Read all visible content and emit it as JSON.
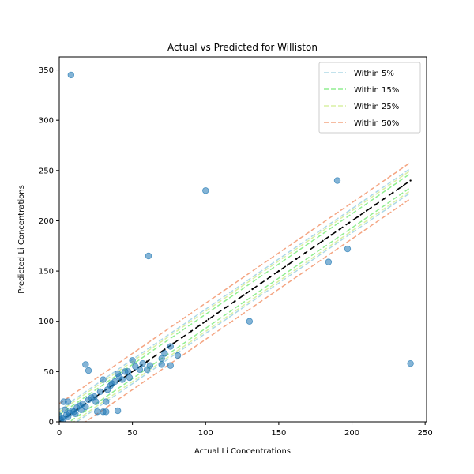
{
  "chart_data": {
    "type": "scatter",
    "title": "Actual vs Predicted for Williston",
    "xlabel": "Actual Li Concentrations",
    "ylabel": "Predicted Li Concentrations",
    "xlim": [
      0,
      251
    ],
    "ylim": [
      0,
      363
    ],
    "xticks": [
      0,
      50,
      100,
      150,
      200,
      250
    ],
    "yticks": [
      0,
      50,
      100,
      150,
      200,
      250,
      300,
      350
    ],
    "grid": false,
    "legend_position": "top-right",
    "colors": {
      "points": "#1f77b4",
      "identity": "#000000",
      "band_5": "#add8e6",
      "band_15": "#90ee90",
      "band_25": "#d9f0a3",
      "band_50": "#f4a582"
    },
    "series": [
      {
        "name": "",
        "kind": "points",
        "points": [
          [
            8,
            345
          ],
          [
            100,
            230
          ],
          [
            61,
            165
          ],
          [
            190,
            240
          ],
          [
            197,
            172
          ],
          [
            184,
            159
          ],
          [
            130,
            100
          ],
          [
            240,
            58
          ],
          [
            18,
            57
          ],
          [
            20,
            51
          ],
          [
            30,
            42
          ],
          [
            50,
            61
          ],
          [
            40,
            48
          ],
          [
            45,
            50
          ],
          [
            48,
            44
          ],
          [
            52,
            55
          ],
          [
            55,
            52
          ],
          [
            60,
            52
          ],
          [
            62,
            56
          ],
          [
            70,
            57
          ],
          [
            70,
            63
          ],
          [
            72,
            68
          ],
          [
            76,
            56
          ],
          [
            76,
            75
          ],
          [
            81,
            66
          ],
          [
            35,
            36
          ],
          [
            38,
            40
          ],
          [
            41,
            45
          ],
          [
            43,
            42
          ],
          [
            33,
            32
          ],
          [
            28,
            30
          ],
          [
            25,
            20
          ],
          [
            22,
            24
          ],
          [
            30,
            10
          ],
          [
            32,
            20
          ],
          [
            26,
            10
          ],
          [
            32,
            10
          ],
          [
            40,
            11
          ],
          [
            6,
            20
          ],
          [
            3,
            20
          ],
          [
            15,
            12
          ],
          [
            12,
            14
          ],
          [
            10,
            10
          ],
          [
            7,
            9
          ],
          [
            5,
            7
          ],
          [
            2,
            4
          ],
          [
            1,
            2
          ],
          [
            3,
            3
          ],
          [
            9,
            11
          ],
          [
            16,
            18
          ],
          [
            18,
            15
          ],
          [
            14,
            16
          ],
          [
            11,
            8
          ],
          [
            4,
            12
          ],
          [
            6,
            5
          ],
          [
            0,
            6
          ],
          [
            20,
            22
          ],
          [
            24,
            25
          ],
          [
            36,
            38
          ],
          [
            47,
            50
          ],
          [
            57,
            58
          ]
        ]
      },
      {
        "name": "",
        "kind": "line",
        "dash": "dash",
        "points": [
          [
            0,
            0
          ],
          [
            240,
            240
          ]
        ]
      },
      {
        "name": "",
        "kind": "marker_line",
        "points": [
          [
            0,
            0
          ],
          [
            240,
            240
          ]
        ]
      },
      {
        "name": "Within 5%",
        "kind": "band",
        "percent": 5,
        "offset": 12,
        "color": "#add8e6"
      },
      {
        "name": "Within 15%",
        "kind": "band",
        "percent": 15,
        "offset": 7,
        "color": "#90ee90"
      },
      {
        "name": "Within 25%",
        "kind": "band",
        "percent": 25,
        "offset": 10,
        "color": "#d9f0a3"
      },
      {
        "name": "Within 50%",
        "kind": "band",
        "percent": 50,
        "offset": 18,
        "color": "#f4a582"
      }
    ]
  }
}
